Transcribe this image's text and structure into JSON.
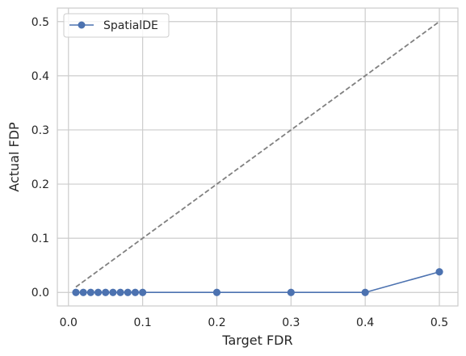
{
  "chart_data": {
    "type": "line",
    "title": "",
    "xlabel": "Target FDR",
    "ylabel": "Actual FDP",
    "xlim": [
      -0.015,
      0.525
    ],
    "ylim": [
      -0.025,
      0.525
    ],
    "xticks": [
      0.0,
      0.1,
      0.2,
      0.3,
      0.4,
      0.5
    ],
    "xtick_labels": [
      "0.0",
      "0.1",
      "0.2",
      "0.3",
      "0.4",
      "0.5"
    ],
    "yticks": [
      0.0,
      0.1,
      0.2,
      0.3,
      0.4,
      0.5
    ],
    "ytick_labels": [
      "0.0",
      "0.1",
      "0.2",
      "0.3",
      "0.4",
      "0.5"
    ],
    "grid": true,
    "legend": {
      "position": "top-left"
    },
    "series": [
      {
        "name": "SpatialDE",
        "color": "#4c72b0",
        "marker": "circle",
        "linestyle": "solid",
        "x": [
          0.01,
          0.02,
          0.03,
          0.04,
          0.05,
          0.06,
          0.07,
          0.08,
          0.09,
          0.1,
          0.2,
          0.3,
          0.4,
          0.5
        ],
        "y": [
          0.0,
          0.0,
          0.0,
          0.0,
          0.0,
          0.0,
          0.0,
          0.0,
          0.0,
          0.0,
          0.0,
          0.0,
          0.0,
          0.038
        ]
      }
    ],
    "reference_line": {
      "x": [
        0.01,
        0.5
      ],
      "y": [
        0.01,
        0.5
      ],
      "color": "#808080",
      "linestyle": "dashed"
    }
  }
}
